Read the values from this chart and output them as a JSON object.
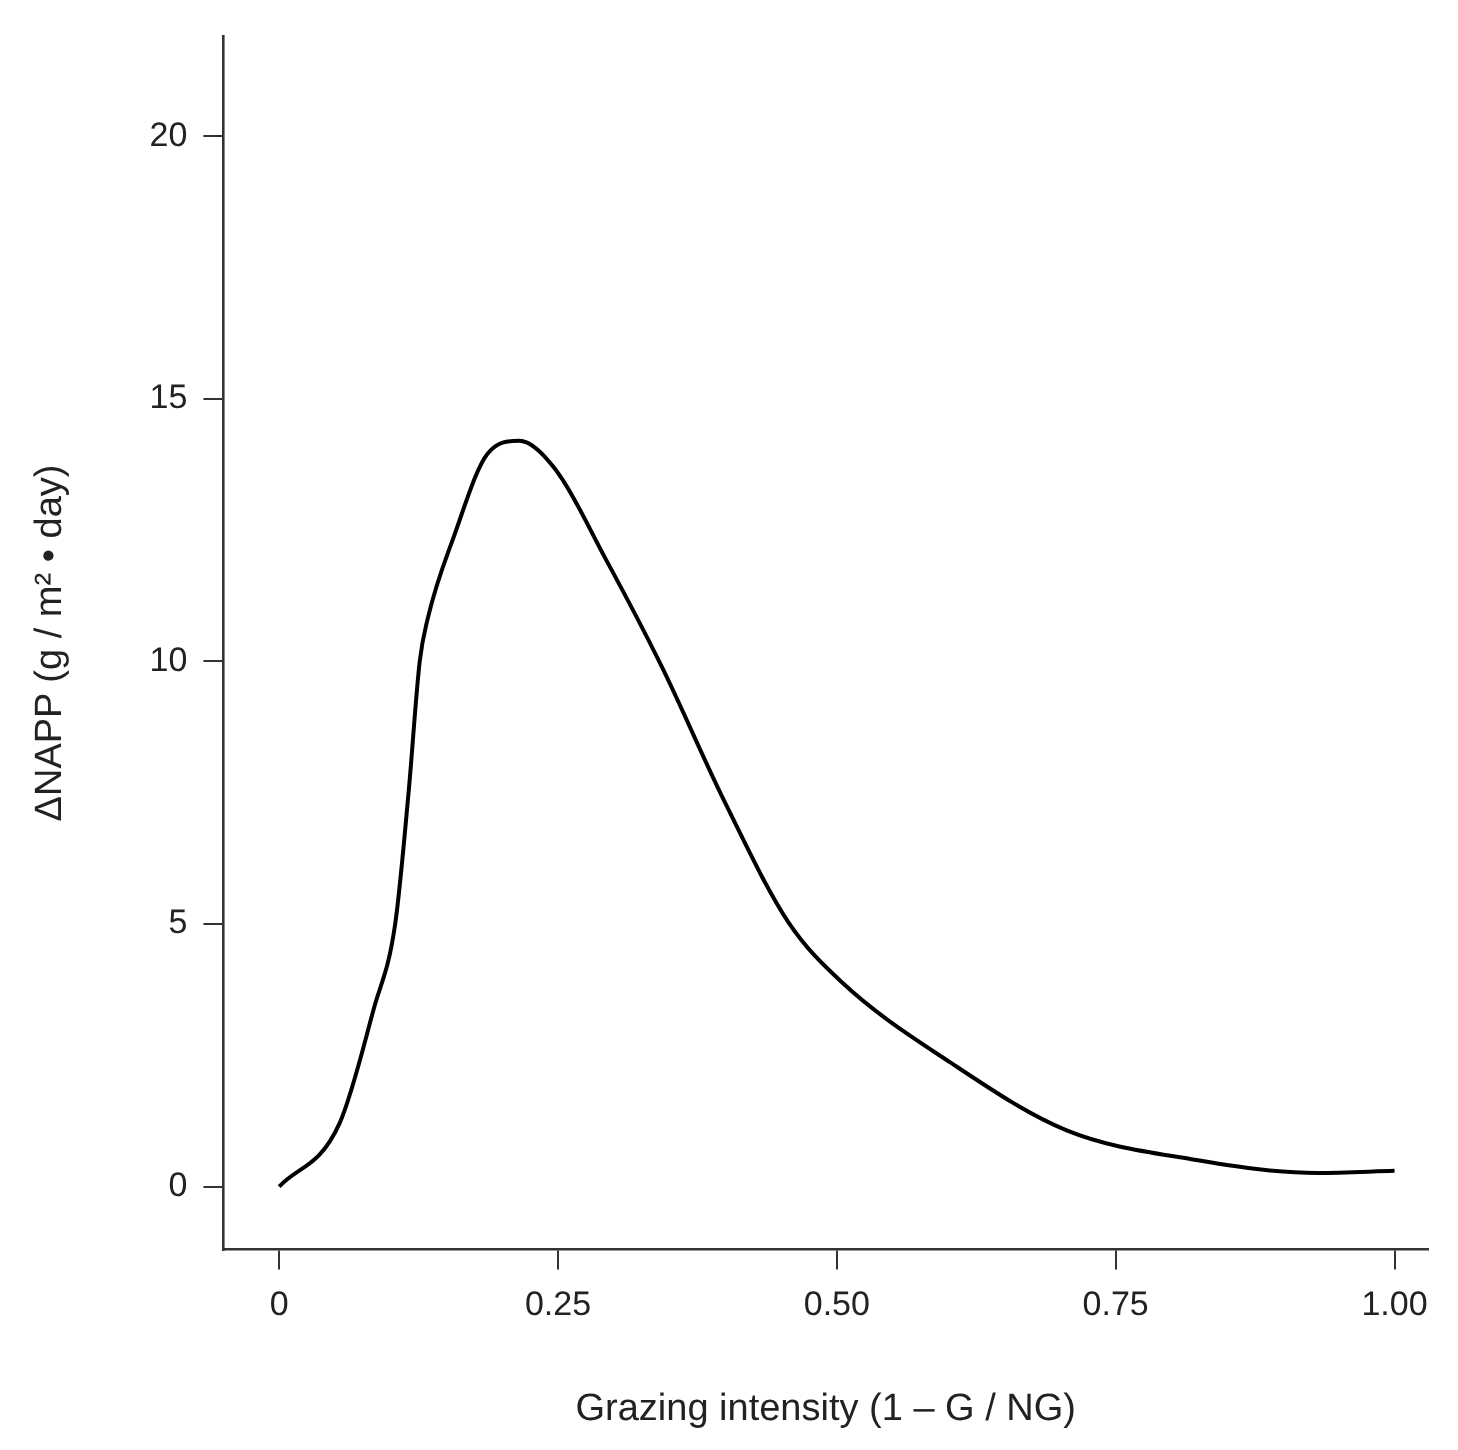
{
  "chart_data": {
    "type": "line",
    "xlabel": "Grazing intensity (1 – G / NG)",
    "ylabel": "ΔNAPP (g / m² • day)",
    "x": [
      0,
      0.054,
      0.085,
      0.104,
      0.116,
      0.126,
      0.133,
      0.157,
      0.187,
      0.215,
      0.246,
      0.294,
      0.343,
      0.4,
      0.456,
      0.504,
      0.602,
      0.706,
      0.818,
      0.931,
      1.0
    ],
    "series": [
      {
        "color": "#000000",
        "values": [
          0,
          1.2,
          3.4,
          5,
          7.5,
          10,
          10.8,
          12.4,
          13.96,
          14.2,
          13.7,
          11.9,
          9.9,
          7.3,
          5.05,
          3.9,
          2.36,
          1.07,
          0.52,
          0.26,
          0.3
        ]
      }
    ],
    "xlim": [
      -0.05,
      1.03
    ],
    "ylim": [
      -1.2,
      21.9
    ],
    "xticks": [
      0,
      {
        "value": 0.25,
        "label": "0.25"
      },
      {
        "value": 0.5,
        "label": "0.50"
      },
      {
        "value": 0.75,
        "label": "0.75"
      },
      {
        "value": 1,
        "label": "1.00"
      }
    ],
    "yticks": [
      0,
      5,
      10,
      15,
      20
    ],
    "grid": false,
    "legend": false,
    "marker": "none",
    "line_style": "solid"
  }
}
